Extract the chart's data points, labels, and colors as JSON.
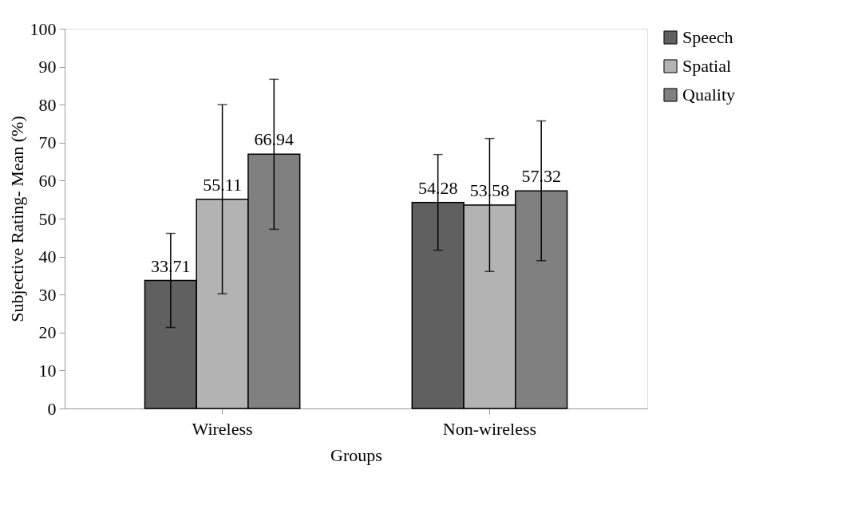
{
  "chart_data": {
    "type": "bar",
    "xlabel": "Groups",
    "ylabel": "Subjective Rating- Mean (%)",
    "categories": [
      "Wireless",
      "Non-wireless"
    ],
    "series": [
      {
        "name": "Speech",
        "color": "#606060",
        "values": [
          33.71,
          54.28
        ],
        "errors": [
          12.4,
          12.6
        ]
      },
      {
        "name": "Spatial",
        "color": "#b3b3b3",
        "values": [
          55.11,
          53.58
        ],
        "errors": [
          24.9,
          17.5
        ]
      },
      {
        "name": "Quality",
        "color": "#808080",
        "values": [
          66.94,
          57.32
        ],
        "errors": [
          19.75,
          18.4
        ]
      }
    ],
    "ylim": [
      0,
      100
    ],
    "yticks": [
      0,
      10,
      20,
      30,
      40,
      50,
      60,
      70,
      80,
      90,
      100
    ],
    "grid": false,
    "legend": "right",
    "data_labels": true
  }
}
